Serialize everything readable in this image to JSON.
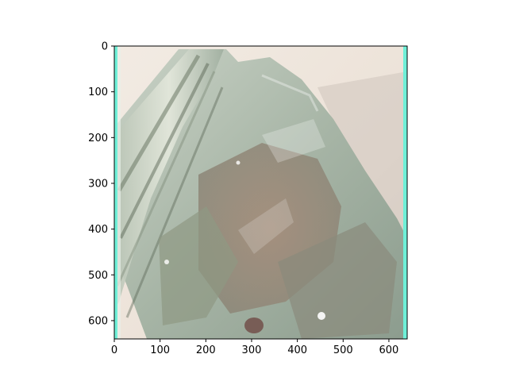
{
  "image": {
    "description_icon": "glass-jar-photo",
    "axis_range": {
      "x": [
        0,
        640
      ],
      "y": [
        640,
        0
      ]
    },
    "x_ticks": [
      {
        "value": 0,
        "label": "0"
      },
      {
        "value": 100,
        "label": "100"
      },
      {
        "value": 200,
        "label": "200"
      },
      {
        "value": 300,
        "label": "300"
      },
      {
        "value": 400,
        "label": "400"
      },
      {
        "value": 500,
        "label": "500"
      },
      {
        "value": 600,
        "label": "600"
      }
    ],
    "y_ticks": [
      {
        "value": 0,
        "label": "0"
      },
      {
        "value": 100,
        "label": "100"
      },
      {
        "value": 200,
        "label": "200"
      },
      {
        "value": 300,
        "label": "300"
      },
      {
        "value": 400,
        "label": "400"
      },
      {
        "value": 500,
        "label": "500"
      },
      {
        "value": 600,
        "label": "600"
      }
    ],
    "colors": {
      "background_wall": "#efe6dd",
      "glass_tint": "#aab9ad",
      "contents_brown": "#9a7f6d",
      "edge_cyan": "#6ff0d8"
    }
  }
}
